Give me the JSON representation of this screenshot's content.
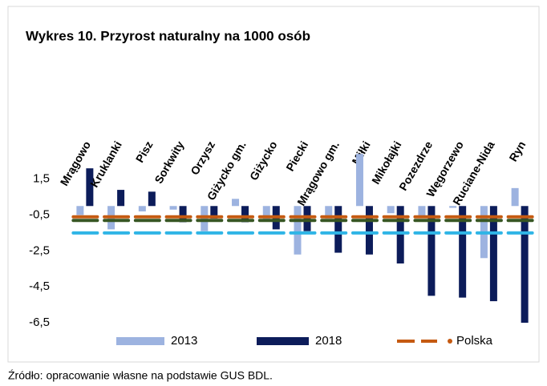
{
  "chart_data": {
    "type": "bar",
    "title": "Wykres 10. Przyrost naturalny na 1000 osób",
    "source": "Źródło: opracowanie własne na podstawie GUS BDL.",
    "categories": [
      "Mrągowo",
      "Kruklanki",
      "Pisz",
      "Sorkwity",
      "Orzysz",
      "Giżycko gm.",
      "Giżycko",
      "Piecki",
      "Mrągowo gm.",
      "Miłki",
      "Mikołajki",
      "Pozezdrze",
      "Węgorzewo",
      "Ruciane-Nida",
      "Ryn"
    ],
    "series": [
      {
        "name": "2013",
        "color": "#9db3e0",
        "values": [
          -0.5,
          -1.3,
          -0.3,
          -0.2,
          -1.4,
          0.4,
          -0.8,
          -2.7,
          -0.7,
          2.9,
          -0.4,
          -0.6,
          -0.1,
          -2.9,
          1.0
        ]
      },
      {
        "name": "2018",
        "color": "#0c1c5a",
        "values": [
          2.1,
          0.9,
          0.8,
          -0.9,
          -0.7,
          -0.9,
          -1.3,
          -1.4,
          -2.6,
          -2.7,
          -3.2,
          -5.0,
          -5.1,
          -5.3,
          -6.5
        ]
      }
    ],
    "lines": [
      {
        "name": "Polska",
        "color": "#c55a11",
        "values": [
          -0.6,
          -0.6,
          -0.6,
          -0.6,
          -0.6,
          -0.6,
          -0.6,
          -0.6,
          -0.6,
          -0.6,
          -0.6,
          -0.6,
          -0.6,
          -0.6,
          -0.6
        ]
      },
      {
        "color": "#375623",
        "values": [
          -0.8,
          -0.8,
          -0.8,
          -0.8,
          -0.8,
          -0.8,
          -0.8,
          -0.8,
          -0.8,
          -0.8,
          -0.8,
          -0.8,
          -0.8,
          -0.8,
          -0.8
        ]
      },
      {
        "color": "#2fb5e6",
        "values": [
          -1.5,
          -1.5,
          -1.5,
          -1.5,
          -1.5,
          -1.5,
          -1.5,
          -1.5,
          -1.5,
          -1.5,
          -1.5,
          -1.5,
          -1.5,
          -1.5,
          -1.5
        ]
      }
    ],
    "ylim": [
      -6.5,
      3
    ],
    "yticks": [
      {
        "value": 1.5,
        "label": "1,5"
      },
      {
        "value": -0.5,
        "label": "-0,5"
      },
      {
        "value": -2.5,
        "label": "-2,5"
      },
      {
        "value": -4.5,
        "label": "-4,5"
      },
      {
        "value": -6.5,
        "label": "-6,5"
      }
    ],
    "grid": false
  }
}
